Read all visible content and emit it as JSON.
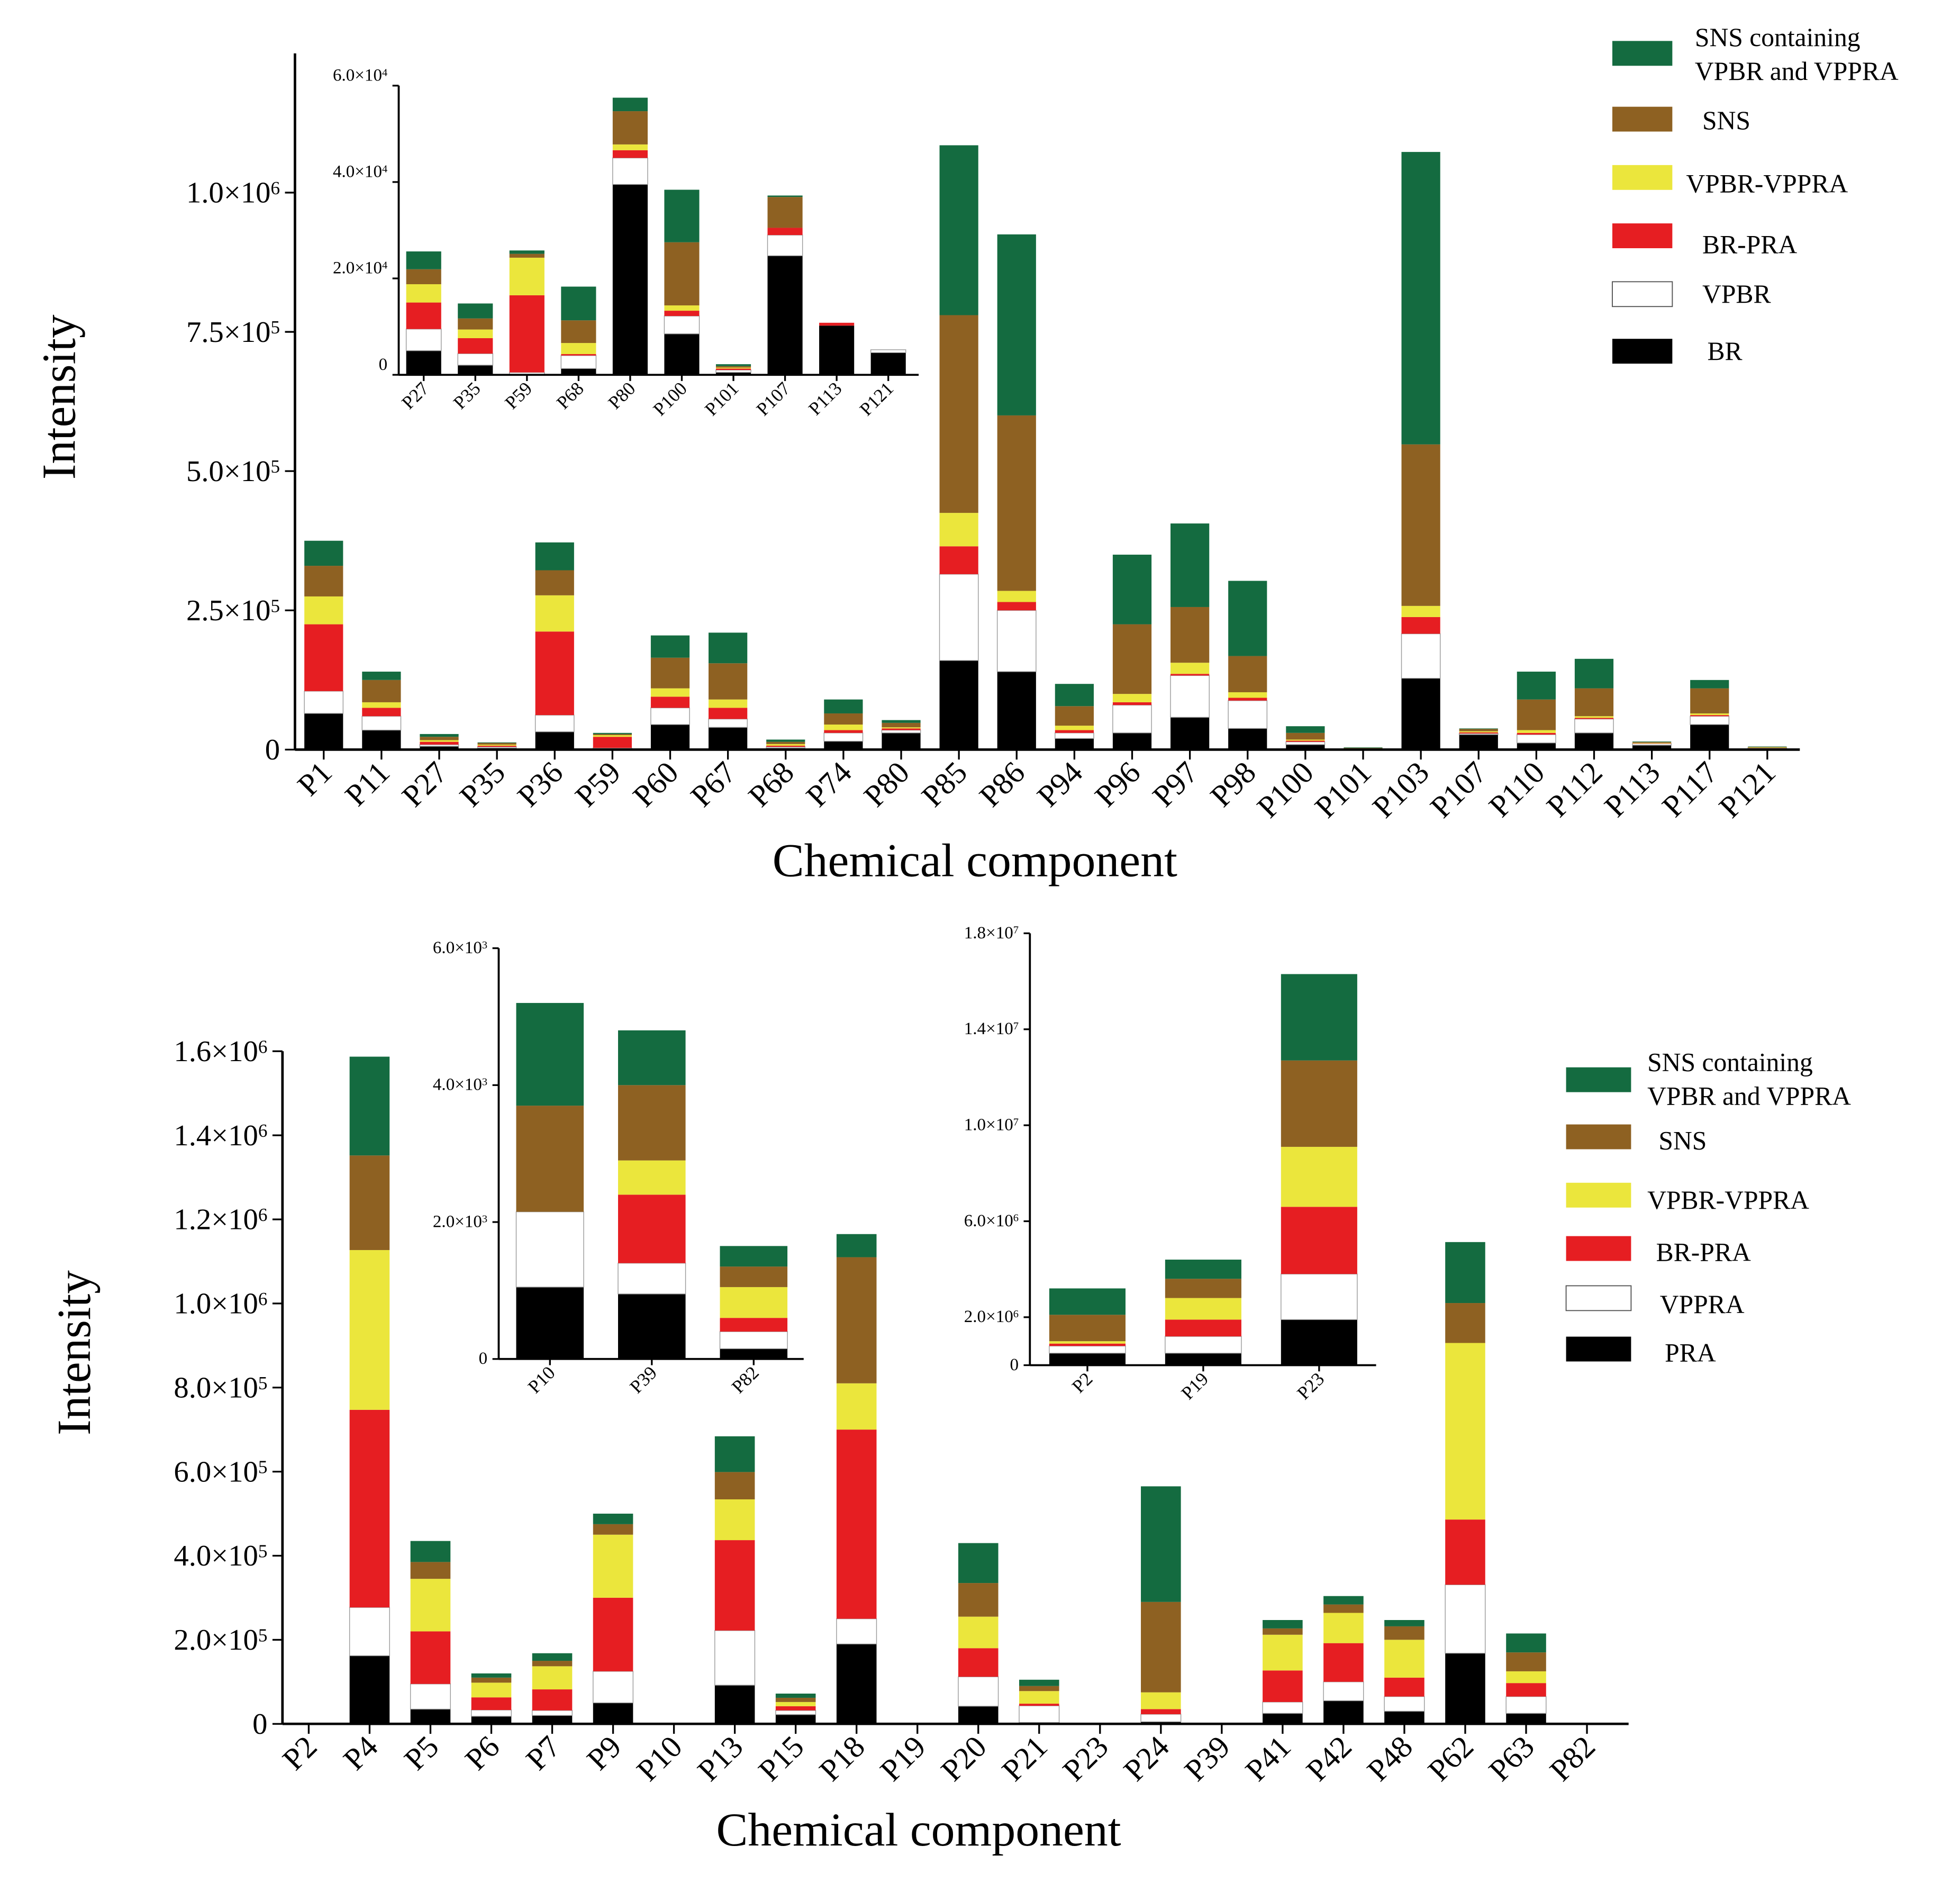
{
  "colors": {
    "SNS containing VPBR and VPPRA": "#146b40",
    "SNS": "#8e6122",
    "VPBR-VPPRA": "#ebe63c",
    "BR-PRA": "#e61e22",
    "VPBR": "#ffffff",
    "VPPRA": "#ffffff",
    "BR": "#000000",
    "PRA": "#000000"
  },
  "chart_data": [
    {
      "type": "bar",
      "stacked": true,
      "xlabel": "Chemical component",
      "ylabel": "Intensity",
      "ylim": [
        0,
        1250000
      ],
      "yticks": [
        0,
        250000,
        500000,
        750000,
        1000000
      ],
      "ytick_labels": [
        "0",
        "2.5×10^5",
        "5.0×10^5",
        "7.5×10^5",
        "1.0×10^6"
      ],
      "legend_position": "top-right",
      "categories": [
        "P1",
        "P11",
        "P27",
        "P35",
        "P36",
        "P59",
        "P60",
        "P67",
        "P68",
        "P74",
        "P80",
        "P85",
        "P86",
        "P94",
        "P96",
        "P97",
        "P98",
        "P100",
        "P101",
        "P103",
        "P107",
        "P110",
        "P112",
        "P113",
        "P117",
        "P121"
      ],
      "series": [
        {
          "name": "BR",
          "values": [
            65000,
            35000,
            6000,
            3000,
            32000,
            1000,
            45000,
            40000,
            3000,
            15000,
            30000,
            160000,
            140000,
            20000,
            30000,
            58000,
            38000,
            9000,
            500,
            128000,
            27000,
            12000,
            30000,
            8000,
            45000,
            3000
          ]
        },
        {
          "name": "VPBR",
          "values": [
            40000,
            25000,
            3000,
            2000,
            30000,
            2000,
            30000,
            15000,
            2000,
            15000,
            5000,
            155000,
            110000,
            10000,
            50000,
            75000,
            50000,
            5000,
            1000,
            80000,
            2000,
            15000,
            25000,
            3000,
            15000,
            500
          ]
        },
        {
          "name": "BR-PRA",
          "values": [
            120000,
            15000,
            5000,
            2000,
            150000,
            20000,
            20000,
            20000,
            2000,
            5000,
            3000,
            50000,
            15000,
            5000,
            5000,
            3000,
            5000,
            2000,
            500,
            30000,
            2000,
            3000,
            2000,
            500,
            2000,
            300
          ]
        },
        {
          "name": "VPBR-VPPRA",
          "values": [
            50000,
            10000,
            3000,
            2000,
            65000,
            3000,
            15000,
            15000,
            3000,
            10000,
            2000,
            60000,
            20000,
            8000,
            15000,
            20000,
            10000,
            2000,
            500,
            20000,
            2000,
            5000,
            3000,
            500,
            3000,
            200
          ]
        },
        {
          "name": "SNS",
          "values": [
            55000,
            40000,
            6000,
            3000,
            45000,
            2000,
            55000,
            65000,
            4000,
            20000,
            8000,
            355000,
            315000,
            35000,
            125000,
            100000,
            65000,
            12000,
            500,
            290000,
            4000,
            55000,
            50000,
            1500,
            45000,
            1000
          ]
        },
        {
          "name": "SNS containing VPBR and VPPRA",
          "values": [
            45000,
            15000,
            5000,
            1000,
            50000,
            2000,
            40000,
            55000,
            4000,
            25000,
            5000,
            305000,
            325000,
            40000,
            125000,
            150000,
            135000,
            12000,
            1000,
            525000,
            1000,
            50000,
            53000,
            1000,
            15000,
            500
          ]
        }
      ],
      "legend": [
        "SNS containing VPBR and VPPRA",
        "SNS",
        "VPBR-VPPRA",
        "BR-PRA",
        "VPBR",
        "BR"
      ],
      "inset": {
        "ylim": [
          0,
          60000
        ],
        "yticks": [
          0,
          20000,
          40000,
          60000
        ],
        "ytick_labels": [
          "0",
          "2.0×10^4",
          "4.0×10^4",
          "6.0×10^4"
        ],
        "categories": [
          "P27",
          "P35",
          "P59",
          "P68",
          "P80",
          "P100",
          "P101",
          "P107",
          "P113",
          "P121"
        ],
        "series": [
          {
            "name": "BR",
            "values": [
              5000,
              2000,
              0,
              1300,
              39500,
              8500,
              500,
              24700,
              10200,
              4600
            ]
          },
          {
            "name": "VPBR",
            "values": [
              4500,
              2400,
              500,
              2700,
              5500,
              3700,
              500,
              4300,
              0,
              600
            ]
          },
          {
            "name": "BR-PRA",
            "values": [
              5500,
              3200,
              16000,
              300,
              1600,
              1100,
              300,
              1500,
              600,
              0
            ]
          },
          {
            "name": "VPBR-VPPRA",
            "values": [
              3800,
              1800,
              7800,
              2300,
              1200,
              1100,
              200,
              0,
              0,
              0
            ]
          },
          {
            "name": "SNS",
            "values": [
              3100,
              2300,
              800,
              4700,
              6900,
              13100,
              300,
              6400,
              0,
              0
            ]
          },
          {
            "name": "SNS containing VPBR and VPPRA",
            "values": [
              3700,
              3100,
              700,
              7000,
              2800,
              10900,
              400,
              300,
              0,
              0
            ]
          }
        ]
      }
    },
    {
      "type": "bar",
      "stacked": true,
      "xlabel": "Chemical component",
      "ylabel": "Intensity",
      "ylim": [
        0,
        1600000
      ],
      "yticks": [
        0,
        200000,
        400000,
        600000,
        800000,
        1000000,
        1200000,
        1400000,
        1600000
      ],
      "ytick_labels": [
        "0",
        "2.0×10^5",
        "4.0×10^5",
        "6.0×10^5",
        "8.0×10^5",
        "1.0×10^6",
        "1.2×10^6",
        "1.4×10^6",
        "1.6×10^6"
      ],
      "legend_position": "right",
      "categories": [
        "P2",
        "P4",
        "P5",
        "P6",
        "P7",
        "P9",
        "P10",
        "P13",
        "P15",
        "P18",
        "P19",
        "P20",
        "P21",
        "P23",
        "P24",
        "P39",
        "P41",
        "P42",
        "P48",
        "P62",
        "P63",
        "P82"
      ],
      "series": [
        {
          "name": "PRA",
          "values": [
            0,
            162000,
            35000,
            18000,
            20000,
            50000,
            0,
            92000,
            22000,
            190000,
            0,
            42000,
            3000,
            0,
            5000,
            0,
            25000,
            55000,
            30000,
            168000,
            25000,
            0
          ]
        },
        {
          "name": "VPPRA",
          "values": [
            0,
            115000,
            60000,
            15000,
            12000,
            75000,
            0,
            130000,
            10000,
            60000,
            1000,
            70000,
            40000,
            0,
            18000,
            0,
            27000,
            45000,
            35000,
            163000,
            40000,
            0
          ]
        },
        {
          "name": "BR-PRA",
          "values": [
            0,
            470000,
            125000,
            30000,
            50000,
            175000,
            0,
            215000,
            10000,
            450000,
            0,
            68000,
            5000,
            0,
            12000,
            0,
            75000,
            92000,
            45000,
            155000,
            32000,
            0
          ]
        },
        {
          "name": "VPBR-VPPRA",
          "values": [
            0,
            380000,
            125000,
            35000,
            55000,
            150000,
            0,
            97000,
            10000,
            110000,
            0,
            75000,
            30000,
            0,
            40000,
            0,
            85000,
            72000,
            90000,
            420000,
            28000,
            0
          ]
        },
        {
          "name": "SNS",
          "values": [
            0,
            225000,
            40000,
            12000,
            13000,
            25000,
            0,
            65000,
            10000,
            300000,
            0,
            80000,
            12000,
            0,
            215000,
            0,
            15000,
            20000,
            32000,
            95000,
            45000,
            0
          ]
        },
        {
          "name": "SNS containing VPBR and VPPRA",
          "values": [
            0,
            235000,
            50000,
            10000,
            18000,
            25000,
            0,
            85000,
            10000,
            55000,
            0,
            95000,
            15000,
            0,
            275000,
            0,
            20000,
            20000,
            15000,
            145000,
            45000,
            0
          ]
        }
      ],
      "legend": [
        "SNS containing VPBR and VPPRA",
        "SNS",
        "VPBR-VPPRA",
        "BR-PRA",
        "VPPRA",
        "PRA"
      ],
      "insets": [
        {
          "ylim": [
            0,
            6000
          ],
          "yticks": [
            0,
            2000,
            4000,
            6000
          ],
          "ytick_labels": [
            "0",
            "2.0×10^3",
            "4.0×10^3",
            "6.0×10^3"
          ],
          "categories": [
            "P10",
            "P39",
            "P82"
          ],
          "series": [
            {
              "name": "PRA",
              "values": [
                1050,
                950,
                150
              ]
            },
            {
              "name": "VPPRA",
              "values": [
                1100,
                450,
                250
              ]
            },
            {
              "name": "BR-PRA",
              "values": [
                0,
                1000,
                200
              ]
            },
            {
              "name": "VPBR-VPPRA",
              "values": [
                0,
                500,
                450
              ]
            },
            {
              "name": "SNS",
              "values": [
                1550,
                1100,
                300
              ]
            },
            {
              "name": "SNS containing VPBR and VPPRA",
              "values": [
                1500,
                800,
                300
              ]
            }
          ]
        },
        {
          "ylim": [
            0,
            18000000
          ],
          "yticks": [
            0,
            2000000,
            6000000,
            10000000,
            14000000,
            18000000
          ],
          "ytick_labels": [
            "0",
            "2.0×10^6",
            "6.0×10^6",
            "1.0×10^7",
            "1.4×10^7",
            "1.8×10^7"
          ],
          "categories": [
            "P2",
            "P19",
            "P23"
          ],
          "series": [
            {
              "name": "PRA",
              "values": [
                500000,
                500000,
                1900000
              ]
            },
            {
              "name": "VPPRA",
              "values": [
                300000,
                700000,
                1900000
              ]
            },
            {
              "name": "BR-PRA",
              "values": [
                100000,
                700000,
                2800000
              ]
            },
            {
              "name": "VPBR-VPPRA",
              "values": [
                100000,
                900000,
                2500000
              ]
            },
            {
              "name": "SNS",
              "values": [
                1100000,
                800000,
                3600000
              ]
            },
            {
              "name": "SNS containing VPBR and VPPRA",
              "values": [
                1100000,
                800000,
                3600000
              ]
            }
          ]
        }
      ]
    }
  ]
}
